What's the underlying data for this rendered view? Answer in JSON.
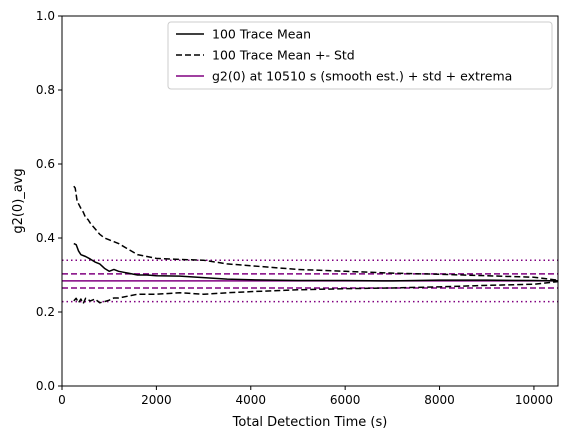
{
  "chart_data": {
    "type": "line",
    "title": "",
    "xlabel": "Total Detection Time (s)",
    "ylabel": "g2(0)_avg",
    "xlim": [
      0,
      10510
    ],
    "ylim": [
      0.0,
      1.0
    ],
    "xticks": [
      0,
      2000,
      4000,
      6000,
      8000,
      10000
    ],
    "xtick_labels": [
      "0",
      "2000",
      "4000",
      "6000",
      "8000",
      "10000"
    ],
    "yticks": [
      0.0,
      0.2,
      0.4,
      0.6,
      0.8,
      1.0
    ],
    "ytick_labels": [
      "0.0",
      "0.2",
      "0.4",
      "0.6",
      "0.8",
      "1.0"
    ],
    "grid": false,
    "legend": {
      "position": "top-right",
      "entries": [
        {
          "label": "100 Trace Mean",
          "color": "#000000",
          "style": "solid"
        },
        {
          "label": "100 Trace Mean +- Std",
          "color": "#000000",
          "style": "dashed"
        },
        {
          "label": "g2(0) at 10510 s (smooth est.) + std + extrema",
          "color": "#800080",
          "style": "solid"
        }
      ]
    },
    "series": [
      {
        "color": "#000000",
        "style": "solid",
        "x": [
          250,
          300,
          350,
          400,
          500,
          600,
          700,
          800,
          900,
          1000,
          1100,
          1200,
          1400,
          1600,
          1800,
          2000,
          2500,
          3000,
          3500,
          4000,
          5000,
          6000,
          7000,
          8000,
          9000,
          10000,
          10510
        ],
        "y": [
          0.385,
          0.382,
          0.365,
          0.355,
          0.35,
          0.343,
          0.335,
          0.33,
          0.318,
          0.31,
          0.315,
          0.31,
          0.305,
          0.3,
          0.3,
          0.298,
          0.297,
          0.293,
          0.289,
          0.287,
          0.285,
          0.285,
          0.284,
          0.286,
          0.286,
          0.285,
          0.284
        ]
      },
      {
        "color": "#000000",
        "style": "dashed",
        "x": [
          250,
          280,
          320,
          360,
          400,
          450,
          500,
          550,
          600,
          700,
          800,
          900,
          1000,
          1100,
          1200,
          1400,
          1600,
          1800,
          2000,
          2500,
          3000,
          3500,
          4000,
          5000,
          6000,
          7000,
          8000,
          9000,
          10000,
          10510
        ],
        "y": [
          0.54,
          0.535,
          0.5,
          0.49,
          0.48,
          0.47,
          0.455,
          0.45,
          0.44,
          0.425,
          0.41,
          0.4,
          0.395,
          0.39,
          0.385,
          0.37,
          0.355,
          0.35,
          0.345,
          0.342,
          0.34,
          0.33,
          0.325,
          0.315,
          0.31,
          0.305,
          0.302,
          0.298,
          0.294,
          0.286
        ]
      },
      {
        "color": "#000000",
        "style": "dashed",
        "x": [
          250,
          300,
          350,
          400,
          450,
          500,
          600,
          700,
          800,
          900,
          1000,
          1100,
          1200,
          1400,
          1600,
          1800,
          2000,
          2500,
          3000,
          3500,
          4000,
          5000,
          6000,
          7000,
          8000,
          9000,
          10000,
          10510
        ],
        "y": [
          0.23,
          0.237,
          0.225,
          0.235,
          0.223,
          0.237,
          0.23,
          0.235,
          0.225,
          0.228,
          0.232,
          0.238,
          0.238,
          0.243,
          0.248,
          0.248,
          0.248,
          0.252,
          0.248,
          0.252,
          0.255,
          0.26,
          0.263,
          0.265,
          0.268,
          0.272,
          0.275,
          0.282
        ]
      }
    ],
    "reference_lines": [
      {
        "y": 0.34,
        "color": "#800080",
        "style": "dotted"
      },
      {
        "y": 0.303,
        "color": "#800080",
        "style": "dashed"
      },
      {
        "y": 0.284,
        "color": "#800080",
        "style": "solid"
      },
      {
        "y": 0.265,
        "color": "#800080",
        "style": "dashed"
      },
      {
        "y": 0.228,
        "color": "#800080",
        "style": "dotted"
      }
    ]
  }
}
